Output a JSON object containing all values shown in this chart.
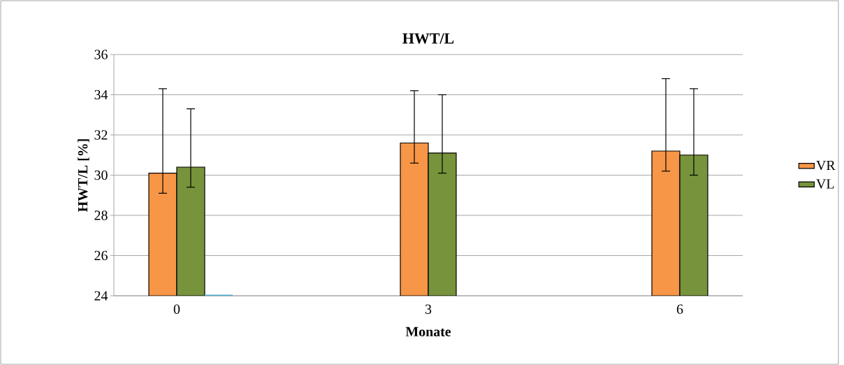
{
  "chart_data": {
    "type": "bar",
    "title": "HWT/L",
    "xlabel": "Monate",
    "ylabel": "HWT/L [%]",
    "categories": [
      "0",
      null,
      "3",
      null,
      "6"
    ],
    "series": [
      {
        "name": "VR",
        "color": "#f79646",
        "values": [
          30.1,
          null,
          31.6,
          null,
          31.2
        ],
        "errors": [
          [
            29.1,
            34.3
          ],
          null,
          [
            30.6,
            34.2
          ],
          null,
          [
            30.2,
            34.8
          ]
        ]
      },
      {
        "name": "VL",
        "color": "#77933c",
        "values": [
          30.4,
          null,
          31.1,
          null,
          31.0
        ],
        "errors": [
          [
            29.4,
            33.3
          ],
          null,
          [
            30.1,
            34.0
          ],
          null,
          [
            30.0,
            34.3
          ]
        ]
      },
      {
        "color": "#4bacc6",
        "values": [
          24,
          null,
          null,
          null,
          null
        ]
      }
    ],
    "ylim": [
      24,
      36
    ],
    "yticks": [
      24,
      26,
      28,
      30,
      32,
      34,
      36
    ],
    "grid": "y",
    "legend": "right"
  }
}
